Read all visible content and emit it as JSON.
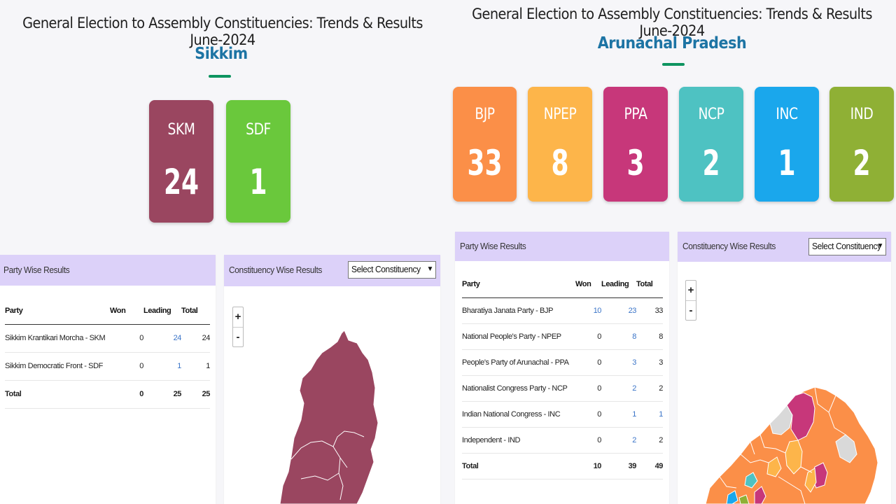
{
  "sikkim": {
    "title": "General Election to Assembly Constituencies: Trends & Results June-2024",
    "state": "Sikkim",
    "tiles": [
      {
        "abbr": "SKM",
        "count": "24",
        "color": "#9a4660"
      },
      {
        "abbr": "SDF",
        "count": "1",
        "color": "#6ac83c"
      }
    ],
    "party_panel": {
      "title": "Party Wise Results",
      "headers": {
        "party": "Party",
        "won": "Won",
        "leading": "Leading",
        "total": "Total"
      },
      "rows": [
        {
          "party": "Sikkim Krantikari Morcha - SKM",
          "won": "0",
          "leading": "24",
          "total": "24"
        },
        {
          "party": "Sikkim Democratic Front - SDF",
          "won": "0",
          "leading": "1",
          "total": "1"
        }
      ],
      "total": {
        "label": "Total",
        "won": "0",
        "leading": "25",
        "total": "25"
      }
    },
    "constituency_panel": {
      "title": "Constituency Wise Results",
      "select_value": "Select Constituency",
      "zoom_in": "+",
      "zoom_out": "-",
      "map_color": "#9a4660"
    }
  },
  "arunachal": {
    "title": "General Election to Assembly Constituencies: Trends & Results June-2024",
    "state": "Arunachal Pradesh",
    "tiles": [
      {
        "abbr": "BJP",
        "count": "33",
        "color": "#fb8f48"
      },
      {
        "abbr": "NPEP",
        "count": "8",
        "color": "#fdb54a"
      },
      {
        "abbr": "PPA",
        "count": "3",
        "color": "#c7377a"
      },
      {
        "abbr": "NCP",
        "count": "2",
        "color": "#4ec2c2"
      },
      {
        "abbr": "INC",
        "count": "1",
        "color": "#1aa7ec"
      },
      {
        "abbr": "IND",
        "count": "2",
        "color": "#8fb035"
      }
    ],
    "party_panel": {
      "title": "Party Wise Results",
      "headers": {
        "party": "Party",
        "won": "Won",
        "leading": "Leading",
        "total": "Total"
      },
      "rows": [
        {
          "party": "Bharatiya Janata Party - BJP",
          "won": "10",
          "leading": "23",
          "total": "33"
        },
        {
          "party": "National People's Party - NPEP",
          "won": "0",
          "leading": "8",
          "total": "8"
        },
        {
          "party": "People's Party of Arunachal - PPA",
          "won": "0",
          "leading": "3",
          "total": "3"
        },
        {
          "party": "Nationalist Congress Party - NCP",
          "won": "0",
          "leading": "2",
          "total": "2"
        },
        {
          "party": "Indian National Congress - INC",
          "won": "0",
          "leading": "1",
          "total": "1"
        },
        {
          "party": "Independent - IND",
          "won": "0",
          "leading": "2",
          "total": "2"
        }
      ],
      "total": {
        "label": "Total",
        "won": "10",
        "leading": "39",
        "total": "49"
      }
    },
    "constituency_panel": {
      "title": "Constituency Wise Results",
      "select_value": "Select Constituency",
      "zoom_in": "+",
      "zoom_out": "-"
    }
  }
}
